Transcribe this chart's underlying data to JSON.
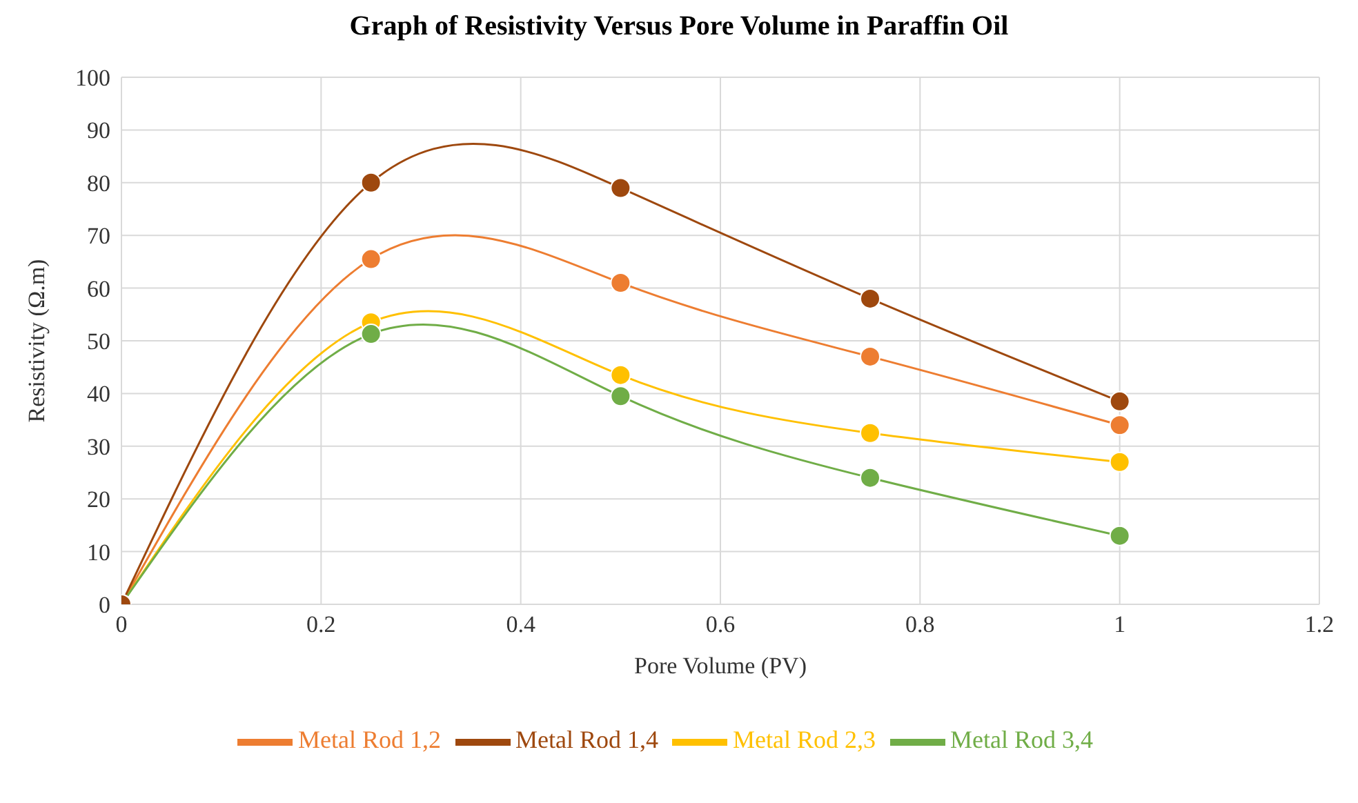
{
  "chart_data": {
    "type": "line",
    "title": "Graph of Resistivity Versus Pore Volume in Paraffin Oil",
    "xlabel": "Pore Volume (PV)",
    "ylabel": "Resistivity (Ω.m)",
    "x": [
      0,
      0.25,
      0.5,
      0.75,
      1
    ],
    "series": [
      {
        "name": "Metal Rod 1,2",
        "color": "#ed7d31",
        "values": [
          0,
          65.5,
          61,
          47,
          34
        ]
      },
      {
        "name": "Metal Rod 2,3",
        "color": "#ffc000",
        "values": [
          0,
          53.5,
          43.5,
          32.5,
          27
        ]
      },
      {
        "name": "Metal Rod 3,4",
        "color": "#70ad47",
        "values": [
          0,
          51.3,
          39.5,
          24,
          13
        ]
      },
      {
        "name": "Metal Rod 1,4",
        "color": "#9e480e",
        "values": [
          0,
          80,
          79,
          58,
          38.5
        ]
      }
    ],
    "xlim": [
      0,
      1.2
    ],
    "xticks": [
      0,
      0.2,
      0.4,
      0.6,
      0.8,
      1,
      1.2
    ],
    "ylim": [
      0,
      100
    ],
    "yticks": [
      0,
      10,
      20,
      30,
      40,
      50,
      60,
      70,
      80,
      90,
      100
    ],
    "grid": true,
    "legend": "bottom",
    "marker": "circle",
    "line_style": "solid"
  }
}
